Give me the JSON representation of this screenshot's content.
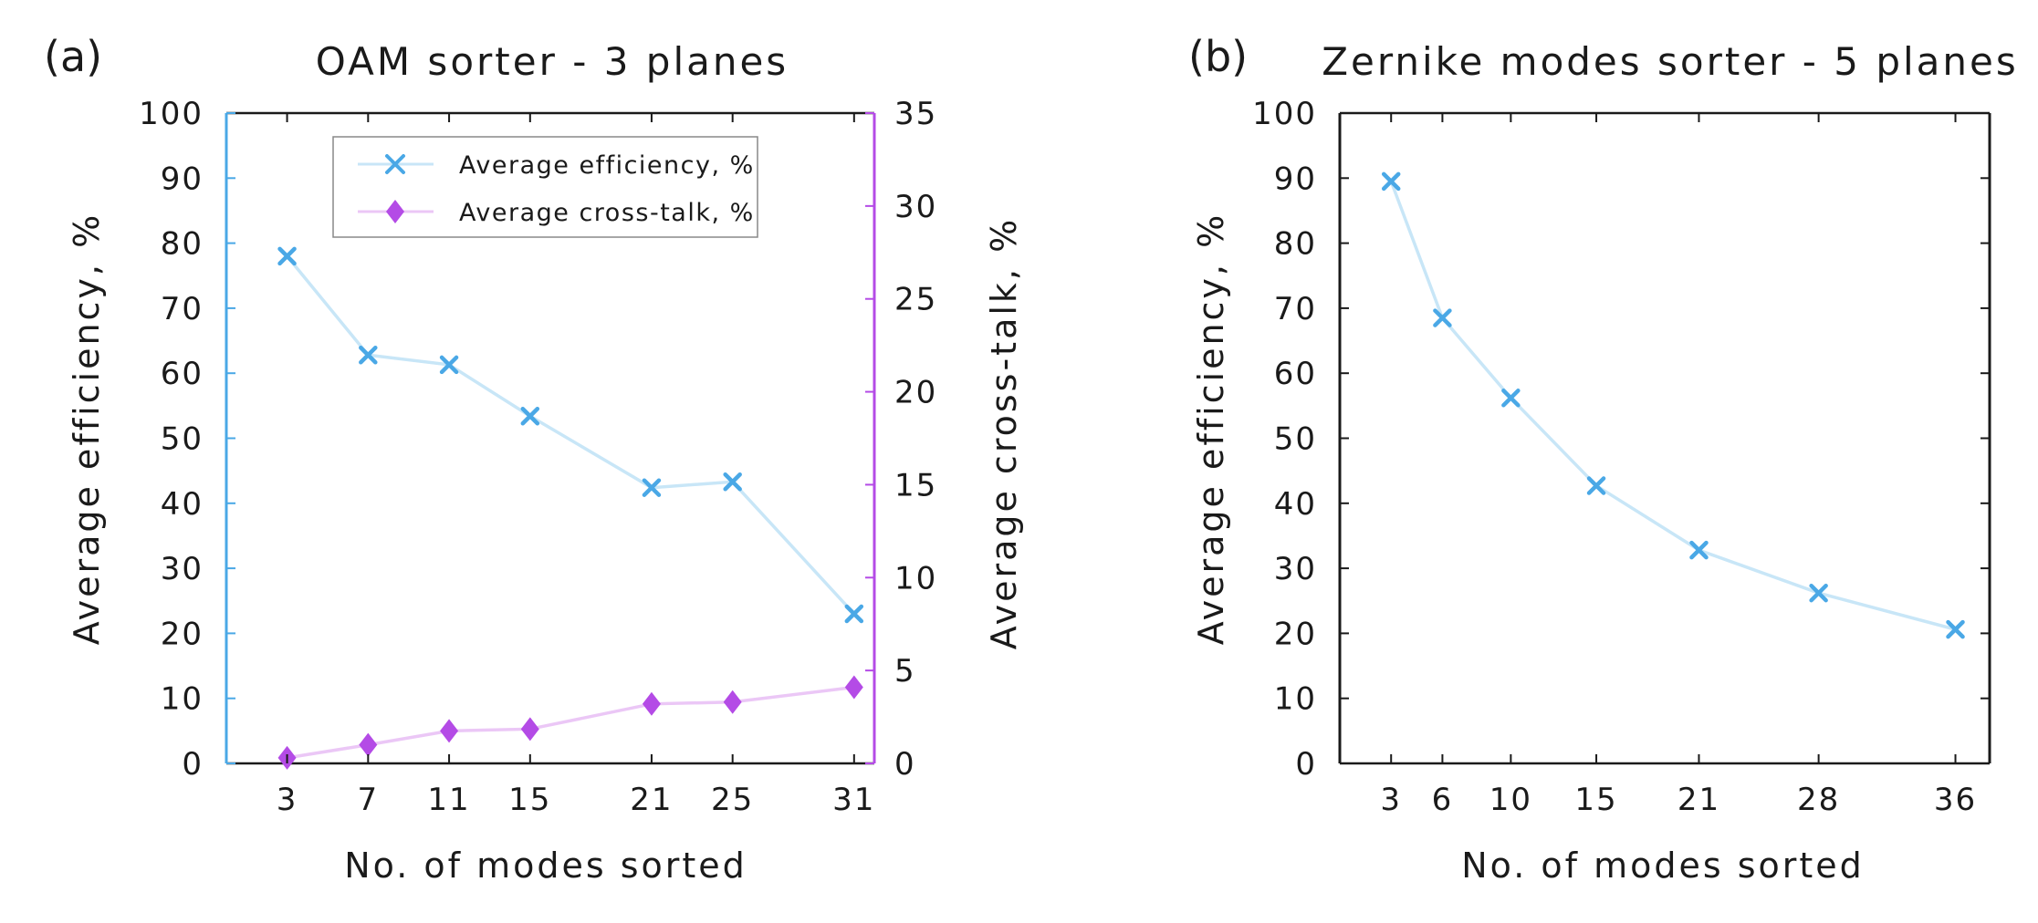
{
  "chart_data": [
    {
      "type": "line",
      "panel_label": "(a)",
      "title": "OAM sorter - 3 planes",
      "xlabel": "No. of modes sorted",
      "ylabel": "Average efficiency, %",
      "y2label": "Average cross-talk, %",
      "x": [
        3,
        7,
        11,
        15,
        21,
        25,
        31
      ],
      "xlim": [
        0,
        32
      ],
      "ylim": [
        0,
        100
      ],
      "y2lim": [
        0,
        35
      ],
      "yticks": [
        0,
        10,
        20,
        30,
        40,
        50,
        60,
        70,
        80,
        90,
        100
      ],
      "y2ticks": [
        0,
        5,
        10,
        15,
        20,
        25,
        30,
        35
      ],
      "legend_position": "top-center",
      "series": [
        {
          "name": "Average efficiency, %",
          "axis": "left",
          "marker": "x",
          "line_color": "#c8e6f7",
          "marker_color": "#4aa8e6",
          "values": [
            78.0,
            62.8,
            61.3,
            53.4,
            42.4,
            43.3,
            23.0
          ]
        },
        {
          "name": "Average cross-talk, %",
          "axis": "right",
          "marker": "diamond",
          "line_color": "#ebc7f6",
          "marker_color": "#b44be6",
          "values": [
            0.3,
            1.0,
            1.75,
            1.85,
            3.2,
            3.3,
            4.1
          ]
        }
      ],
      "left_axis_color": "#4aa8e6",
      "right_axis_color": "#b44be6"
    },
    {
      "type": "line",
      "panel_label": "(b)",
      "title": "Zernike modes sorter - 5 planes",
      "xlabel": "No. of modes sorted",
      "ylabel": "Average efficiency, %",
      "x": [
        3,
        6,
        10,
        15,
        21,
        28,
        36
      ],
      "xlim": [
        0,
        38
      ],
      "ylim": [
        0,
        100
      ],
      "yticks": [
        0,
        10,
        20,
        30,
        40,
        50,
        60,
        70,
        80,
        90,
        100
      ],
      "series": [
        {
          "name": "Average efficiency, %",
          "axis": "left",
          "marker": "x",
          "line_color": "#c8e6f7",
          "marker_color": "#4aa8e6",
          "values": [
            89.5,
            68.5,
            56.2,
            42.7,
            32.8,
            26.2,
            20.6
          ]
        }
      ]
    }
  ]
}
